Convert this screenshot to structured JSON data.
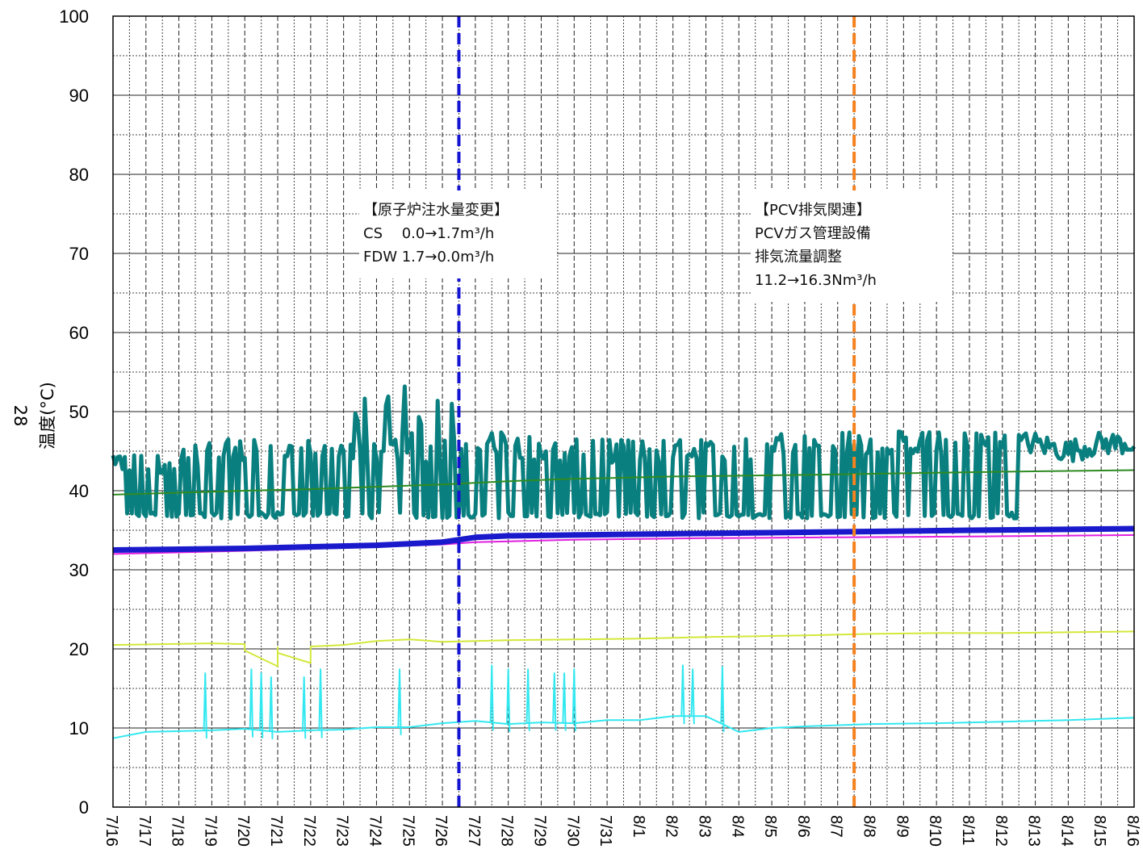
{
  "chart_data": {
    "type": "line",
    "ylabel": "温度(°C)",
    "side_label": "28",
    "ylim": [
      0,
      100
    ],
    "y_ticks": [
      0,
      10,
      20,
      30,
      40,
      50,
      60,
      70,
      80,
      90,
      100
    ],
    "x_tick_labels": [
      "7/16",
      "7/17",
      "7/18",
      "7/19",
      "7/20",
      "7/21",
      "7/22",
      "7/23",
      "7/24",
      "7/25",
      "7/26",
      "7/27",
      "7/28",
      "7/29",
      "7/30",
      "7/31",
      "8/1",
      "8/2",
      "8/3",
      "8/4",
      "8/5",
      "8/6",
      "8/7",
      "8/8",
      "8/9",
      "8/10",
      "8/11",
      "8/12",
      "8/13",
      "8/14",
      "8/15",
      "8/16"
    ],
    "grid": true,
    "series": [
      {
        "color": "#0a7f7f",
        "style": "thick-noisy",
        "x": [
          "7/16",
          "7/17",
          "7/18",
          "7/19",
          "7/20",
          "7/21",
          "7/22",
          "7/23",
          "7/24",
          "7/25",
          "7/26",
          "7/27",
          "7/28",
          "7/29",
          "7/30",
          "7/31",
          "8/1",
          "8/2",
          "8/3",
          "8/4",
          "8/5",
          "8/6",
          "8/7",
          "8/8",
          "8/9",
          "8/10",
          "8/11",
          "8/12",
          "8/13",
          "8/14",
          "8/15",
          "8/16"
        ],
        "y": [
          44,
          43,
          44,
          45,
          45,
          45,
          45,
          45,
          45,
          45,
          45,
          46,
          46,
          45,
          45,
          45,
          45,
          45,
          45,
          45,
          46,
          46,
          46,
          46,
          46,
          46,
          46,
          46,
          46,
          45,
          46,
          46
        ],
        "low": 36.5
      },
      {
        "color": "#2e8b22",
        "x": [
          "7/16",
          "7/20",
          "7/22",
          "7/24",
          "7/26",
          "7/27",
          "7/28",
          "7/30",
          "8/2",
          "8/6",
          "8/9",
          "8/12",
          "8/16"
        ],
        "y": [
          39.5,
          40,
          40.2,
          40.5,
          40.8,
          41,
          41.2,
          41.5,
          41.8,
          42,
          42.2,
          42.4,
          42.6
        ]
      },
      {
        "color": "#e020e0",
        "x": [
          "7/16",
          "7/20",
          "7/24",
          "7/26",
          "7/27",
          "7/30",
          "8/3",
          "8/7",
          "8/11",
          "8/16"
        ],
        "y": [
          32,
          32.4,
          32.9,
          33.2,
          33.5,
          33.8,
          34,
          34.1,
          34.2,
          34.4
        ]
      },
      {
        "color": "#1a1acc",
        "style": "thick",
        "x": [
          "7/16",
          "7/20",
          "7/24",
          "7/26",
          "7/27",
          "7/28",
          "7/30",
          "8/3",
          "8/7",
          "8/11",
          "8/16"
        ],
        "y": [
          32.5,
          32.7,
          33.1,
          33.5,
          34.1,
          34.3,
          34.4,
          34.6,
          34.8,
          35.0,
          35.2
        ]
      },
      {
        "color": "#d4e83a",
        "x": [
          "7/16",
          "7/19",
          "7/20",
          "7/20",
          "7/21",
          "7/21",
          "7/21",
          "7/22",
          "7/22",
          "7/23",
          "7/24",
          "7/25",
          "7/26",
          "7/28",
          "7/30",
          "8/1",
          "8/3",
          "8/6",
          "8/8",
          "8/10",
          "8/12",
          "8/14",
          "8/16"
        ],
        "y": [
          20.5,
          20.7,
          20.6,
          19.8,
          17.8,
          20.2,
          19.5,
          18.2,
          20.3,
          20.5,
          21,
          21.2,
          20.9,
          21.1,
          21.2,
          21.3,
          21.5,
          21.7,
          21.9,
          22,
          22,
          22.1,
          22.2
        ]
      },
      {
        "color": "#33e8f0",
        "x": [
          "7/16",
          "7/17",
          "7/18",
          "7/19",
          "7/20",
          "7/21",
          "7/22",
          "7/23",
          "7/24",
          "7/25",
          "7/26",
          "7/27",
          "7/28",
          "7/29",
          "7/30",
          "7/31",
          "8/1",
          "8/2",
          "8/3",
          "8/4",
          "8/5",
          "8/6",
          "8/8",
          "8/10",
          "8/12",
          "8/14",
          "8/16"
        ],
        "y": [
          8.7,
          9.5,
          9.6,
          9.7,
          9.9,
          9.5,
          9.7,
          9.8,
          10.1,
          10.1,
          10.6,
          10.9,
          10.5,
          10.7,
          10.6,
          11,
          11,
          11.5,
          11.5,
          9.5,
          10,
          10.2,
          10.5,
          10.6,
          10.8,
          11,
          11.3
        ]
      }
    ],
    "annotations": [
      {
        "at": "7/26",
        "color": "#1414d2",
        "lines": [
          "【原子炉注水量変更】",
          "CS　 0.0→1.7m³/h",
          "FDW  1.7→0.0m³/h"
        ]
      },
      {
        "at": "8/7",
        "color": "#f5821f",
        "lines": [
          "【PCV排気関連】",
          "PCVガス管理設備",
          "排気流量調整",
          "11.2→16.3Nm³/h"
        ]
      }
    ]
  }
}
